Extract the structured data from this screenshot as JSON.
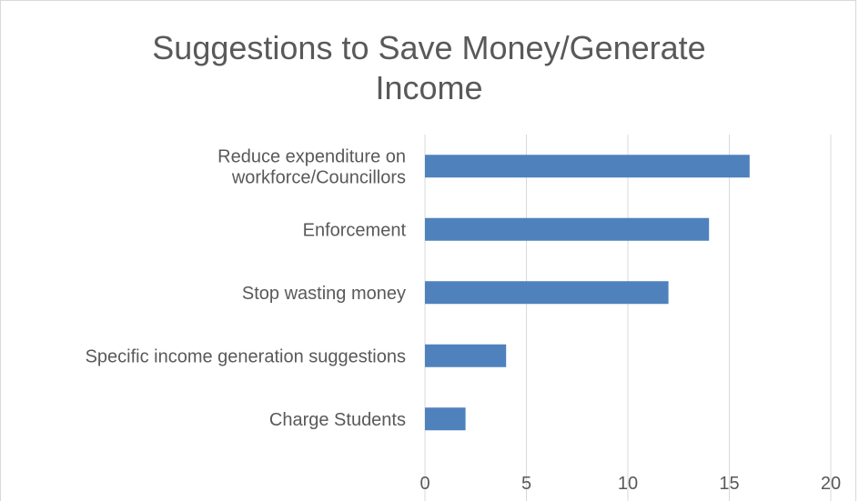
{
  "chart_data": {
    "type": "bar",
    "orientation": "horizontal",
    "title": "Suggestions to Save Money/Generate Income",
    "title_lines": [
      "Suggestions to Save Money/Generate",
      "Income"
    ],
    "categories": [
      [
        "Reduce expenditure on",
        "workforce/Councillors"
      ],
      [
        "Enforcement"
      ],
      [
        "Stop wasting money"
      ],
      [
        "Specific income generation suggestions"
      ],
      [
        "Charge Students"
      ]
    ],
    "values": [
      16,
      14,
      12,
      4,
      2
    ],
    "xlim": [
      0,
      20
    ],
    "xticks": [
      "0",
      "5",
      "10",
      "15",
      "20"
    ],
    "grid": "vertical",
    "legend": "none",
    "bar_color": "#4f81bd",
    "grid_color": "#d9d9d9"
  }
}
